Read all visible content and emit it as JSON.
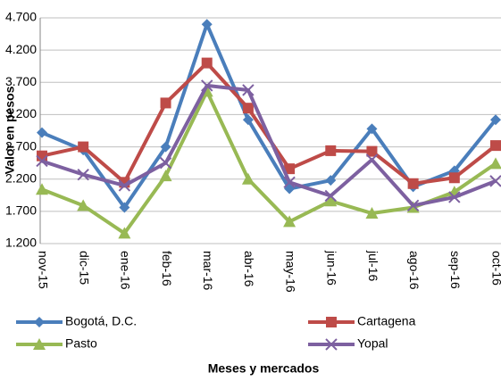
{
  "chart_data": {
    "type": "line",
    "y_label": "Valor en pesos",
    "x_label": "Meses y mercados",
    "categories": [
      "nov-15",
      "dic-15",
      "ene-16",
      "feb-16",
      "mar-16",
      "abr-16",
      "may-16",
      "jun-16",
      "jul-16",
      "ago-16",
      "sep-16",
      "oct-16"
    ],
    "series": [
      {
        "name": "Bogotá, D.C.",
        "color": "#4a7ebb",
        "marker": "diamond",
        "values": [
          2920,
          2650,
          1760,
          2700,
          4600,
          3120,
          2050,
          2180,
          2980,
          2080,
          2330,
          3120
        ]
      },
      {
        "name": "Cartagena",
        "color": "#be4b48",
        "marker": "square",
        "values": [
          2560,
          2700,
          2150,
          3380,
          4000,
          3300,
          2360,
          2640,
          2630,
          2130,
          2220,
          2720
        ]
      },
      {
        "name": "Pasto",
        "color": "#98b954",
        "marker": "triangle",
        "values": [
          2040,
          1790,
          1360,
          2250,
          3560,
          2200,
          1540,
          1860,
          1670,
          1760,
          2000,
          2440
        ]
      },
      {
        "name": "Yopal",
        "color": "#7d60a0",
        "marker": "x",
        "values": [
          2480,
          2270,
          2100,
          2450,
          3650,
          3580,
          2150,
          1940,
          2500,
          1790,
          1920,
          2170
        ]
      }
    ],
    "ylim": [
      1200,
      4700
    ],
    "yticks": [
      {
        "value": 1200,
        "label": "1.200"
      },
      {
        "value": 1700,
        "label": "1.700"
      },
      {
        "value": 2200,
        "label": "2.200"
      },
      {
        "value": 2700,
        "label": "2.700"
      },
      {
        "value": 3200,
        "label": "3.200"
      },
      {
        "value": 3700,
        "label": "3.700"
      },
      {
        "value": 4200,
        "label": "4.200"
      },
      {
        "value": 4700,
        "label": "4.700"
      }
    ],
    "grid": true,
    "legend": "bottom"
  }
}
